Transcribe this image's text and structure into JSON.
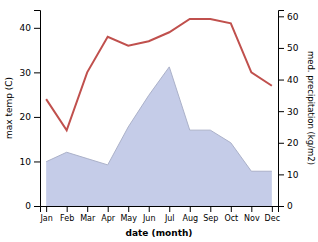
{
  "chart_data": {
    "type": "line",
    "x_label": "date (month)",
    "y_label": "max temp (C)",
    "y2_label": "med. precipitation (kg/m2)",
    "categories": [
      "Jan",
      "Feb",
      "Mar",
      "Apr",
      "May",
      "Jun",
      "Jul",
      "Aug",
      "Sep",
      "Oct",
      "Nov",
      "Dec"
    ],
    "series": [
      {
        "type": "line",
        "color": "#c0504d",
        "values": [
          24,
          17,
          30,
          38,
          36,
          37,
          39,
          42,
          42,
          41,
          30,
          27
        ]
      },
      {
        "type": "area",
        "color": "#c5cce8",
        "axis": "y2",
        "values": [
          14,
          17,
          15,
          13,
          25,
          35,
          44,
          24,
          24,
          20,
          11,
          11
        ]
      }
    ],
    "ylim": [
      0,
      44
    ],
    "yticks": [
      0,
      10,
      20,
      30,
      40
    ],
    "y2lim": [
      0,
      62
    ],
    "y2ticks": [
      0,
      10,
      20,
      30,
      40,
      50,
      60
    ],
    "grid": false
  }
}
